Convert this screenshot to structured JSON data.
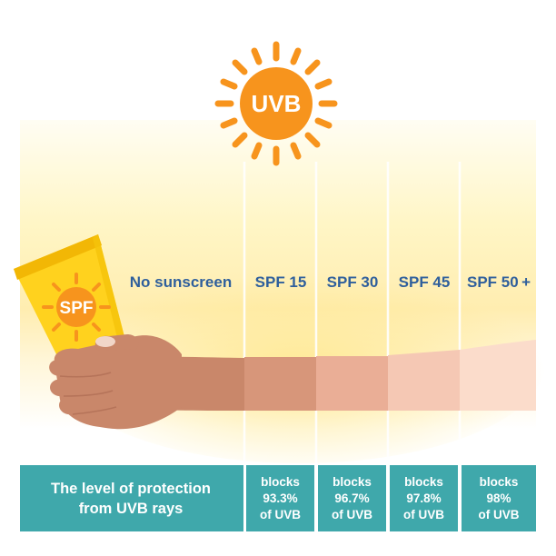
{
  "sun": {
    "label": "UVB"
  },
  "tube": {
    "label": "SPF"
  },
  "columns": [
    {
      "label": "No sunscreen"
    },
    {
      "label": "SPF 15",
      "blocks": "blocks",
      "percent": "93.3%",
      "of": "of UVB"
    },
    {
      "label": "SPF 30",
      "blocks": "blocks",
      "percent": "96.7%",
      "of": "of UVB"
    },
    {
      "label": "SPF 45",
      "blocks": "blocks",
      "percent": "97.8%",
      "of": "of UVB"
    },
    {
      "label": "SPF 50 +",
      "blocks": "blocks",
      "percent": "98%",
      "of": "of UVB"
    }
  ],
  "protection_box": {
    "line1": "The level of protection",
    "line2": "from UVB rays"
  },
  "colors": {
    "sun": "#f7941d",
    "label_text": "#2f5f9c",
    "panel": "#3fa8ab",
    "skin_no_sunscreen": "#c9876a",
    "skin_spf15": "#d7967a",
    "skin_spf30": "#eaae96",
    "skin_spf45": "#f5c8b4",
    "skin_spf50": "#fbdccb",
    "tube": "#ffd21e"
  }
}
